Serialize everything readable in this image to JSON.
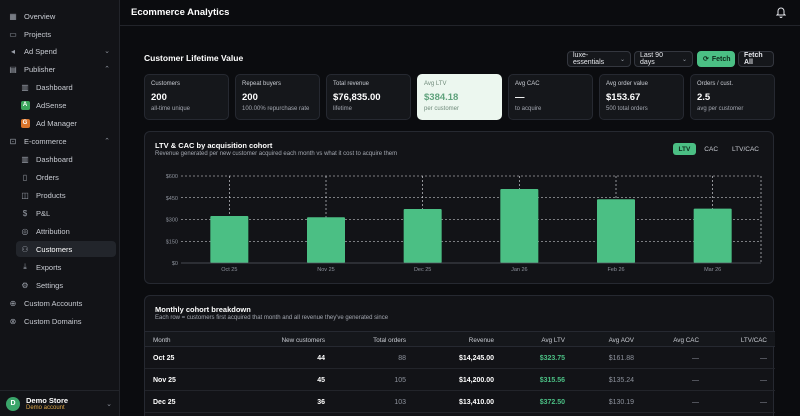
{
  "app": {
    "title": "Ecommerce Analytics"
  },
  "sidebar": {
    "overview": "Overview",
    "projects": "Projects",
    "ad_spend": "Ad Spend",
    "publisher": "Publisher",
    "publisher_items": [
      "Dashboard",
      "AdSense",
      "Ad Manager"
    ],
    "ecommerce": "E-commerce",
    "ecommerce_items": [
      "Dashboard",
      "Orders",
      "Products",
      "P&L",
      "Attribution",
      "Customers",
      "Exports",
      "Settings"
    ],
    "custom_accounts": "Custom Accounts",
    "custom_domains": "Custom Domains",
    "store_name": "Demo Store",
    "store_sub": "Demo account",
    "store_initial": "D"
  },
  "header": {
    "section_title": "Customer Lifetime Value"
  },
  "controls": {
    "store_select": "luxe-essentials",
    "range_select": "Last 90 days",
    "fetch": "Fetch",
    "fetch_all": "Fetch All"
  },
  "kpis": [
    {
      "label": "Customers",
      "value": "200",
      "sub": "all-time unique"
    },
    {
      "label": "Repeat buyers",
      "value": "200",
      "sub": "100.00% repurchase rate"
    },
    {
      "label": "Total revenue",
      "value": "$76,835.00",
      "sub": "lifetime"
    },
    {
      "label": "Avg LTV",
      "value": "$384.18",
      "sub": "per customer"
    },
    {
      "label": "Avg CAC",
      "value": "—",
      "sub": "to acquire"
    },
    {
      "label": "Avg order value",
      "value": "$153.67",
      "sub": "500 total orders"
    },
    {
      "label": "Orders / cust.",
      "value": "2.5",
      "sub": "avg per customer"
    }
  ],
  "chart_card": {
    "title": "LTV & CAC by acquisition cohort",
    "subtitle": "Revenue generated per new customer acquired each month vs what it cost to acquire them",
    "tabs": [
      "LTV",
      "CAC",
      "LTV/CAC"
    ]
  },
  "chart_data": {
    "type": "bar",
    "categories": [
      "Oct 25",
      "Nov 25",
      "Dec 25",
      "Jan 26",
      "Feb 26",
      "Mar 26"
    ],
    "values": [
      323.75,
      315.56,
      372.5,
      510,
      440,
      375
    ],
    "ylim": [
      0,
      600
    ],
    "yticks": [
      "$0",
      "$150",
      "$300",
      "$450",
      "$600"
    ],
    "grid": true,
    "bar_color": "#4bbf84"
  },
  "table": {
    "title": "Monthly cohort breakdown",
    "subtitle": "Each row = customers first acquired that month and all revenue they've generated since",
    "headers": [
      "Month",
      "New customers",
      "Total orders",
      "Revenue",
      "Avg LTV",
      "Avg AOV",
      "Avg CAC",
      "LTV/CAC"
    ],
    "rows": [
      [
        "Oct 25",
        "44",
        "88",
        "$14,245.00",
        "$323.75",
        "$161.88",
        "—",
        "—"
      ],
      [
        "Nov 25",
        "45",
        "105",
        "$14,200.00",
        "$315.56",
        "$135.24",
        "—",
        "—"
      ],
      [
        "Dec 25",
        "36",
        "103",
        "$13,410.00",
        "$372.50",
        "$130.19",
        "—",
        "—"
      ]
    ]
  }
}
